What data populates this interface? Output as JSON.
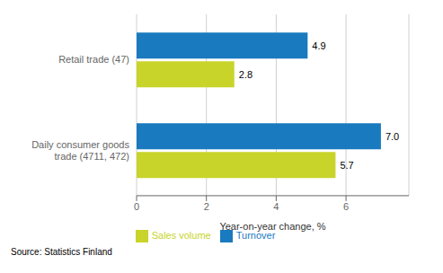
{
  "chart_data": {
    "type": "bar",
    "orientation": "horizontal",
    "categories": [
      "Daily consumer goods trade (4711, 472)",
      "Retail trade (47)"
    ],
    "series": [
      {
        "name": "Turnover",
        "color": "#1a7abf",
        "values": [
          7.0,
          4.9
        ],
        "value_labels": [
          "7.0",
          "4.9"
        ]
      },
      {
        "name": "Sales volume",
        "color": "#c8d42a",
        "values": [
          5.7,
          2.8
        ],
        "value_labels": [
          "5.7",
          "2.8"
        ]
      }
    ],
    "xlabel": "Year-on-year change, %",
    "xlim": [
      0,
      7.8
    ],
    "xticks": [
      0,
      2,
      4,
      6
    ],
    "grid": true,
    "data_labels": true,
    "legend": "bottom",
    "annotations": [
      "Source: Statistics Finland"
    ]
  }
}
